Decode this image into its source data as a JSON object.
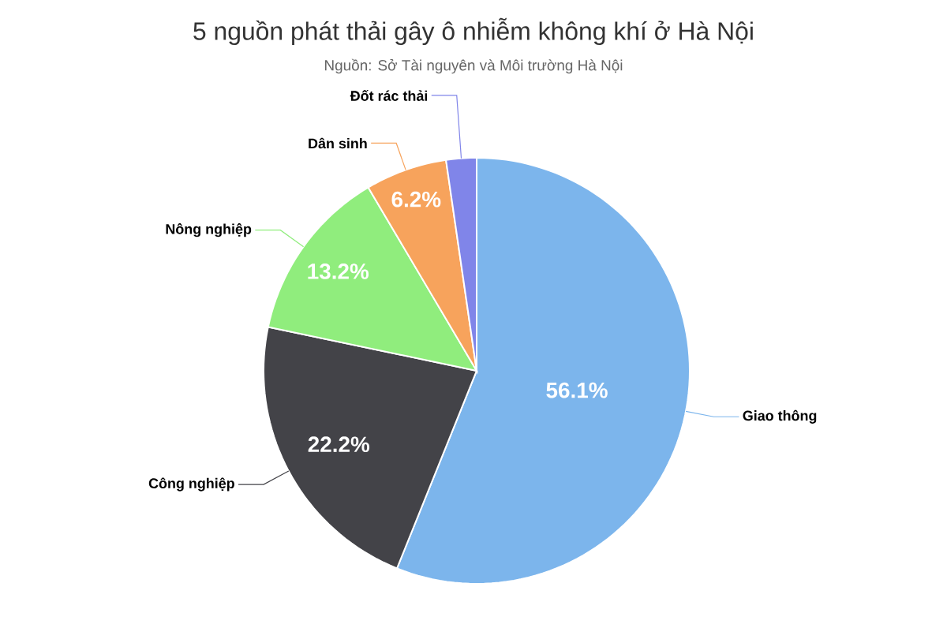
{
  "chart_data": {
    "type": "pie",
    "title": "5 nguồn phát thải gây ô nhiễm không khí ở Hà Nội",
    "subtitle": "Nguồn: Sở Tài nguyên và Môi trường Hà Nội",
    "categories": [
      "Giao thông",
      "Công nghiệp",
      "Nông nghiệp",
      "Dân sinh",
      "Đốt rác thải"
    ],
    "values": [
      56.1,
      22.2,
      13.2,
      6.2,
      2.3
    ],
    "colors": [
      "#7cb5ec",
      "#434348",
      "#90ed7d",
      "#f7a35c",
      "#8085e9"
    ],
    "value_labels": [
      "56.1%",
      "22.2%",
      "13.2%",
      "6.2%",
      null
    ]
  }
}
